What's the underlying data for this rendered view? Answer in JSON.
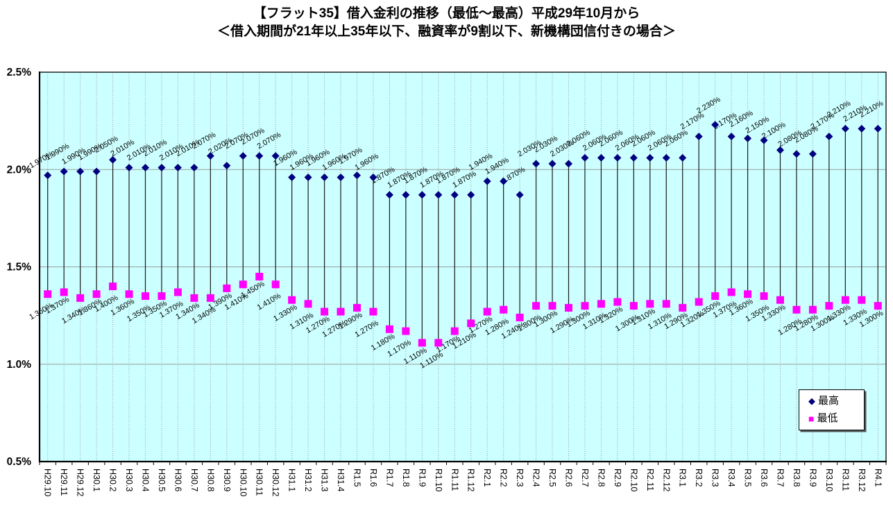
{
  "title": {
    "line1": "【フラット35】借入金利の推移（最低～最高）平成29年10月から",
    "line2": "＜借入期間が21年以上35年以下、融資率が9割以下、新機構団信付きの場合＞"
  },
  "colors": {
    "max_series": "#000080",
    "min_series": "#FF00FF",
    "plot_bg": "#CCFFFF",
    "h_gridline": "#9c9c9c",
    "v_gridline": "#9c9c9c",
    "stem": "#1a1a1a",
    "axis": "#000000",
    "text": "#000000",
    "legend_bg": "#FFFFFF"
  },
  "legend": {
    "position": "right-lower-inside",
    "items": [
      {
        "label": "最高",
        "marker": "diamond",
        "color": "#000080"
      },
      {
        "label": "最低",
        "marker": "square",
        "color": "#FF00FF"
      }
    ]
  },
  "y_axis": {
    "tick_labels": [
      "2.5%",
      "2.0%",
      "1.5%",
      "1.0%",
      "0.5%"
    ],
    "tick_values": [
      2.5,
      2.0,
      1.5,
      1.0,
      0.5
    ]
  },
  "chart_data": {
    "type": "scatter",
    "subtype": "high-low range with markers and rotated data labels",
    "title": "【フラット35】借入金利の推移（最低～最高）平成29年10月から ＜借入期間が21年以上35年以下、融資率が9割以下、新機構団信付きの場合＞",
    "xlabel": "",
    "ylabel": "",
    "ylim": [
      0.5,
      2.5
    ],
    "yticks": [
      0.5,
      1.0,
      1.5,
      2.0,
      2.5
    ],
    "grid": true,
    "legend_position": "right",
    "value_suffix": "%",
    "value_decimals": 3,
    "categories": [
      "H29.10",
      "H29.11",
      "H29.12",
      "H30.1",
      "H30.2",
      "H30.3",
      "H30.4",
      "H30.5",
      "H30.6",
      "H30.7",
      "H30.8",
      "H30.9",
      "H30.10",
      "H30.11",
      "H30.12",
      "H31.1",
      "H31.2",
      "H31.3",
      "H31.4",
      "R1.5",
      "R1.6",
      "R1.7",
      "R1.8",
      "R1.9",
      "R1.10",
      "R1.11",
      "R1.12",
      "R2.1",
      "R2.2",
      "R2.3",
      "R2.4",
      "R2.5",
      "R2.6",
      "R2.7",
      "R2.8",
      "R2.9",
      "R2.10",
      "R2.11",
      "R2.12",
      "R3.1",
      "R3.2",
      "R3.3",
      "R3.4",
      "R3.5",
      "R3.6",
      "R3.7",
      "R3.8",
      "R3.9",
      "R3.10",
      "R3.11",
      "R3.12",
      "R4.1"
    ],
    "series": [
      {
        "name": "最高",
        "marker": "diamond",
        "color": "#000080",
        "values": [
          1.97,
          1.99,
          1.99,
          1.99,
          2.05,
          2.01,
          2.01,
          2.01,
          2.01,
          2.01,
          2.07,
          2.02,
          2.07,
          2.07,
          2.07,
          1.96,
          1.96,
          1.96,
          1.96,
          1.97,
          1.96,
          1.87,
          1.87,
          1.87,
          1.87,
          1.87,
          1.87,
          1.94,
          1.94,
          1.87,
          2.03,
          2.03,
          2.03,
          2.06,
          2.06,
          2.06,
          2.06,
          2.06,
          2.06,
          2.06,
          2.17,
          2.23,
          2.17,
          2.16,
          2.15,
          2.1,
          2.08,
          2.08,
          2.17,
          2.21,
          2.21,
          2.21
        ]
      },
      {
        "name": "最低",
        "marker": "square",
        "color": "#FF00FF",
        "values": [
          1.36,
          1.37,
          1.34,
          1.36,
          1.4,
          1.36,
          1.35,
          1.35,
          1.37,
          1.34,
          1.34,
          1.39,
          1.41,
          1.45,
          1.41,
          1.33,
          1.31,
          1.27,
          1.27,
          1.29,
          1.27,
          1.18,
          1.17,
          1.11,
          1.11,
          1.17,
          1.21,
          1.27,
          1.28,
          1.24,
          1.3,
          1.3,
          1.29,
          1.3,
          1.31,
          1.32,
          1.3,
          1.31,
          1.31,
          1.29,
          1.32,
          1.35,
          1.37,
          1.36,
          1.35,
          1.33,
          1.28,
          1.28,
          1.3,
          1.33,
          1.33,
          1.3
        ]
      }
    ]
  }
}
